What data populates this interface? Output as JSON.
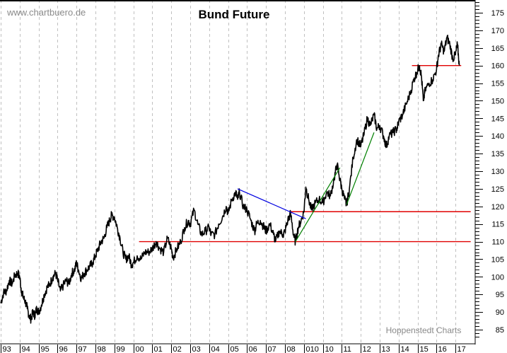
{
  "chart_data": {
    "type": "line",
    "title": "Bund Future",
    "watermark": "www.chartbuero.de",
    "source": "Hoppenstedt Charts",
    "xlabel": "",
    "ylabel": "",
    "ylim": [
      83,
      178
    ],
    "y_ticks": [
      85,
      90,
      95,
      100,
      105,
      110,
      115,
      120,
      125,
      130,
      135,
      140,
      145,
      150,
      155,
      160,
      165,
      170,
      175
    ],
    "x_tick_labels": [
      "93",
      "94",
      "95",
      "96",
      "97",
      "98",
      "99",
      "00",
      "01",
      "02",
      "03",
      "04",
      "05",
      "06",
      "07",
      "08",
      "010",
      "10",
      "11",
      "12",
      "13",
      "14",
      "15",
      "16",
      "17"
    ],
    "grid": {
      "vertical": true,
      "horizontal": false,
      "style": "dashed",
      "color": "#c0c0c0"
    },
    "series": [
      {
        "name": "Bund Future",
        "color": "#000000",
        "points": [
          [
            1993.0,
            92.5
          ],
          [
            1993.15,
            95.5
          ],
          [
            1993.3,
            96
          ],
          [
            1993.45,
            99
          ],
          [
            1993.6,
            98
          ],
          [
            1993.75,
            100.5
          ],
          [
            1993.9,
            101
          ],
          [
            1994.0,
            100
          ],
          [
            1994.1,
            96
          ],
          [
            1994.2,
            94
          ],
          [
            1994.3,
            93
          ],
          [
            1994.4,
            91
          ],
          [
            1994.5,
            89
          ],
          [
            1994.6,
            88
          ],
          [
            1994.7,
            90
          ],
          [
            1994.8,
            89
          ],
          [
            1994.9,
            91
          ],
          [
            1995.0,
            90
          ],
          [
            1995.15,
            92
          ],
          [
            1995.3,
            95
          ],
          [
            1995.45,
            97
          ],
          [
            1995.6,
            98
          ],
          [
            1995.75,
            100
          ],
          [
            1995.9,
            101
          ],
          [
            1996.0,
            99
          ],
          [
            1996.15,
            96
          ],
          [
            1996.3,
            97.5
          ],
          [
            1996.45,
            99
          ],
          [
            1996.6,
            98
          ],
          [
            1996.75,
            101
          ],
          [
            1996.9,
            102
          ],
          [
            1997.0,
            104
          ],
          [
            1997.1,
            102
          ],
          [
            1997.25,
            99.5
          ],
          [
            1997.4,
            101
          ],
          [
            1997.55,
            102
          ],
          [
            1997.7,
            103
          ],
          [
            1997.85,
            104
          ],
          [
            1998.0,
            106
          ],
          [
            1998.15,
            108
          ],
          [
            1998.3,
            110
          ],
          [
            1998.45,
            111
          ],
          [
            1998.6,
            114
          ],
          [
            1998.75,
            116
          ],
          [
            1998.85,
            117.5
          ],
          [
            1999.0,
            117
          ],
          [
            1999.15,
            114
          ],
          [
            1999.3,
            111
          ],
          [
            1999.45,
            107
          ],
          [
            1999.6,
            105
          ],
          [
            1999.75,
            106
          ],
          [
            1999.9,
            103.5
          ],
          [
            2000.0,
            104
          ],
          [
            2000.2,
            106
          ],
          [
            2000.4,
            105
          ],
          [
            2000.6,
            107
          ],
          [
            2000.8,
            107
          ],
          [
            2001.0,
            108
          ],
          [
            2001.2,
            110
          ],
          [
            2001.4,
            108
          ],
          [
            2001.6,
            107
          ],
          [
            2001.8,
            111
          ],
          [
            2002.0,
            108
          ],
          [
            2002.1,
            105.5
          ],
          [
            2002.3,
            108
          ],
          [
            2002.5,
            110
          ],
          [
            2002.7,
            114
          ],
          [
            2002.9,
            116
          ],
          [
            2003.0,
            115
          ],
          [
            2003.2,
            119
          ],
          [
            2003.4,
            115
          ],
          [
            2003.6,
            112
          ],
          [
            2003.8,
            113
          ],
          [
            2004.0,
            114
          ],
          [
            2004.1,
            112
          ],
          [
            2004.3,
            112
          ],
          [
            2004.5,
            115
          ],
          [
            2004.7,
            117
          ],
          [
            2004.9,
            120
          ],
          [
            2005.0,
            118
          ],
          [
            2005.2,
            122
          ],
          [
            2005.4,
            124
          ],
          [
            2005.5,
            122
          ],
          [
            2005.6,
            124
          ],
          [
            2005.8,
            120
          ],
          [
            2006.0,
            119
          ],
          [
            2006.2,
            116
          ],
          [
            2006.4,
            113
          ],
          [
            2006.5,
            115
          ],
          [
            2006.7,
            116
          ],
          [
            2006.9,
            114
          ],
          [
            2007.0,
            113
          ],
          [
            2007.2,
            115
          ],
          [
            2007.4,
            112
          ],
          [
            2007.5,
            110
          ],
          [
            2007.7,
            113
          ],
          [
            2007.9,
            112
          ],
          [
            2008.0,
            113
          ],
          [
            2008.15,
            116
          ],
          [
            2008.3,
            118
          ],
          [
            2008.45,
            112
          ],
          [
            2008.55,
            110
          ],
          [
            2008.7,
            114
          ],
          [
            2008.85,
            116
          ],
          [
            2009.0,
            118.5
          ],
          [
            2009.1,
            125.5
          ],
          [
            2009.25,
            122
          ],
          [
            2009.4,
            119
          ],
          [
            2009.6,
            121
          ],
          [
            2009.8,
            122
          ],
          [
            2010.0,
            121
          ],
          [
            2010.2,
            124
          ],
          [
            2010.4,
            123
          ],
          [
            2010.6,
            128
          ],
          [
            2010.75,
            132
          ],
          [
            2010.85,
            129
          ],
          [
            2011.0,
            125
          ],
          [
            2011.15,
            122
          ],
          [
            2011.25,
            120.5
          ],
          [
            2011.4,
            125
          ],
          [
            2011.6,
            134
          ],
          [
            2011.8,
            139
          ],
          [
            2012.0,
            137
          ],
          [
            2012.15,
            140
          ],
          [
            2012.35,
            145
          ],
          [
            2012.5,
            143
          ],
          [
            2012.7,
            146
          ],
          [
            2012.85,
            142
          ],
          [
            2013.0,
            143
          ],
          [
            2013.2,
            140
          ],
          [
            2013.35,
            137
          ],
          [
            2013.5,
            140
          ],
          [
            2013.7,
            141
          ],
          [
            2013.9,
            142
          ],
          [
            2014.0,
            144
          ],
          [
            2014.2,
            146
          ],
          [
            2014.4,
            149
          ],
          [
            2014.6,
            152
          ],
          [
            2014.8,
            156
          ],
          [
            2014.95,
            158
          ],
          [
            2015.1,
            160
          ],
          [
            2015.2,
            157
          ],
          [
            2015.3,
            150
          ],
          [
            2015.4,
            153
          ],
          [
            2015.6,
            155
          ],
          [
            2015.8,
            156
          ],
          [
            2016.0,
            159
          ],
          [
            2016.1,
            163
          ],
          [
            2016.25,
            166
          ],
          [
            2016.4,
            164
          ],
          [
            2016.55,
            168
          ],
          [
            2016.7,
            166
          ],
          [
            2016.85,
            162
          ],
          [
            2017.0,
            163
          ],
          [
            2017.1,
            166
          ],
          [
            2017.2,
            160
          ]
        ]
      }
    ],
    "annotations": [
      {
        "type": "hline",
        "color": "#e00000",
        "y": 110,
        "x_from": 2000.3,
        "x_to": 2017.8
      },
      {
        "type": "hline",
        "color": "#e00000",
        "y": 118.5,
        "x_from": 2008.3,
        "x_to": 2017.8
      },
      {
        "type": "hline",
        "color": "#e00000",
        "y": 160,
        "x_from": 2014.7,
        "x_to": 2017.3
      },
      {
        "type": "trendline",
        "color": "#0000e0",
        "from": [
          2005.5,
          125
        ],
        "to": [
          2009.1,
          116.5
        ]
      },
      {
        "type": "trendline",
        "color": "#008000",
        "from": [
          2008.55,
          110
        ],
        "to": [
          2010.9,
          131
        ]
      },
      {
        "type": "trendline",
        "color": "#008000",
        "from": [
          2011.25,
          120.5
        ],
        "to": [
          2012.7,
          141
        ]
      }
    ]
  }
}
